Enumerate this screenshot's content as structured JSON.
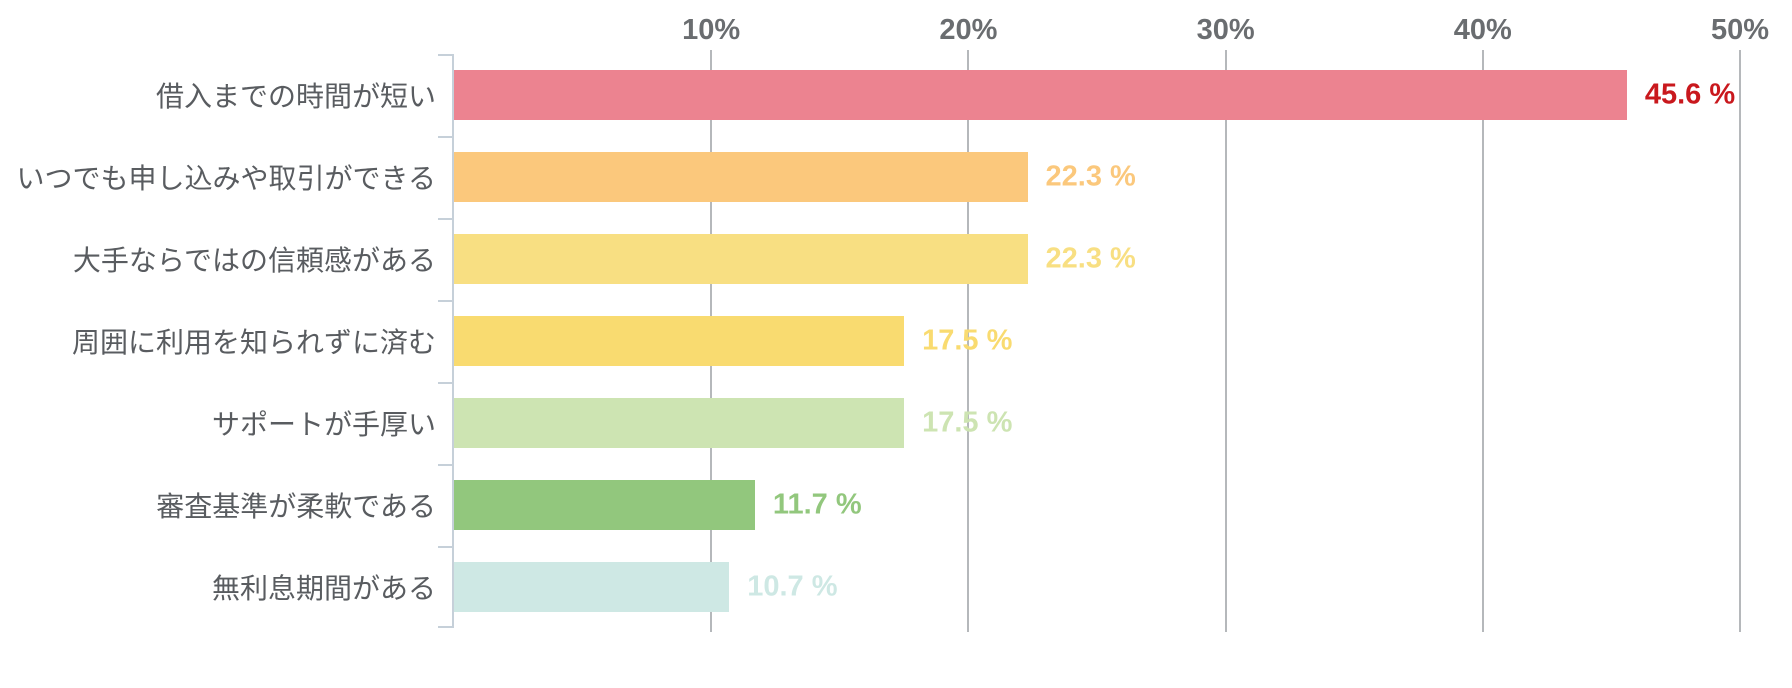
{
  "chart_data": {
    "type": "bar",
    "orientation": "horizontal",
    "title": "",
    "xlabel": "",
    "ylabel": "",
    "x_axis": {
      "unit": "%",
      "tick_labels": [
        "10%",
        "20%",
        "30%",
        "40%",
        "50%"
      ],
      "tick_values": [
        10,
        20,
        30,
        40,
        50
      ],
      "min": 0,
      "max": 50,
      "position": "top"
    },
    "grid": true,
    "legend": false,
    "categories": [
      "借入までの時間が短い",
      "いつでも申し込みや取引ができる",
      "大手ならではの信頼感がある",
      "周囲に利用を知られずに済む",
      "サポートが手厚い",
      "審査基準が柔軟である",
      "無利息期間がある"
    ],
    "values": [
      45.6,
      22.3,
      22.3,
      17.5,
      17.5,
      11.7,
      10.7
    ],
    "value_labels": [
      "45.6 %",
      "22.3 %",
      "22.3 %",
      "17.5 %",
      "17.5 %",
      "11.7 %",
      "10.7 %"
    ],
    "bar_colors": [
      "#ec8390",
      "#fbc87c",
      "#f8df82",
      "#f9db70",
      "#cde4b2",
      "#92c77d",
      "#cee8e4"
    ],
    "value_label_colors": [
      "#c9181d",
      "#fbc87c",
      "#f8df82",
      "#f9db70",
      "#cde4b2",
      "#92c77d",
      "#cee8e4"
    ]
  },
  "colors": {
    "background": "#ffffff",
    "gridline": "#b5b8bb",
    "axis_line": "#c6d0d9",
    "tick_label": "#6a6d70",
    "category_label": "#595c60"
  }
}
